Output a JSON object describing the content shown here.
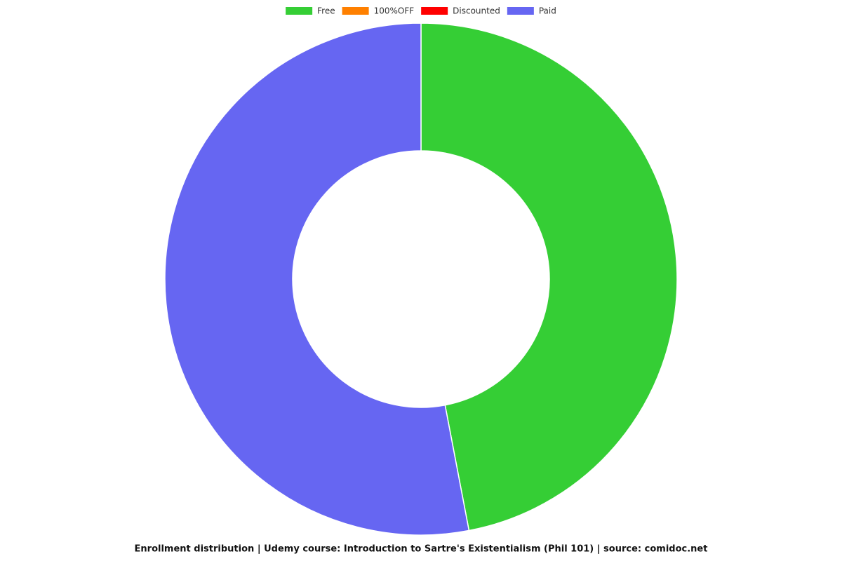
{
  "chart_data": {
    "type": "doughnut",
    "title": "Enrollment distribution | Udemy course: Introduction to Sartre's Existentialism (Phil 101) | source: comidoc.net",
    "categories": [
      "Free",
      "100%OFF",
      "Discounted",
      "Paid"
    ],
    "values": [
      47,
      0,
      0,
      53
    ],
    "colors": [
      "#35ce35",
      "#ff8000",
      "#ff0000",
      "#6666f2"
    ],
    "legend": "top"
  }
}
